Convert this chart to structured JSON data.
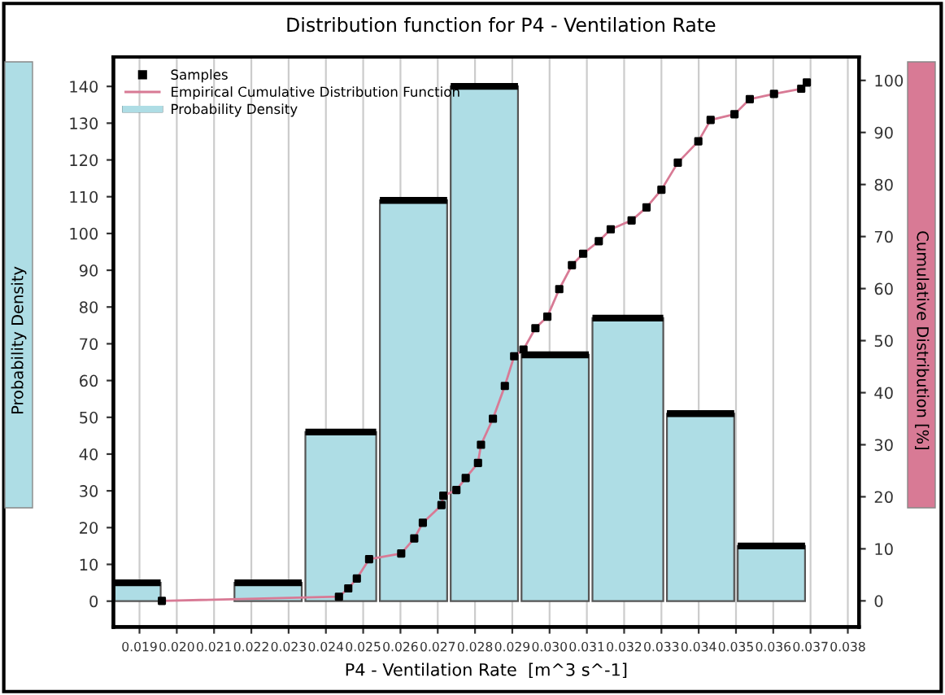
{
  "chart_data": {
    "type": "histogram",
    "title": "Distribution function for P4 - Ventilation Rate",
    "xlabel": "P4 - Ventilation Rate  [m^3 s^-1]",
    "ylabel": "Probability Density",
    "y2label": "Cumulative Distribution [%]",
    "bins": [
      0.0183,
      0.0196,
      0.0215,
      0.0234,
      0.0254,
      0.0273,
      0.0292,
      0.0311,
      0.0331,
      0.035,
      0.0369
    ],
    "series": [
      {
        "name": "Samples",
        "type": "scatter",
        "axis": "y2",
        "color": "#000000",
        "marker": "square",
        "x": [
          0.0196,
          0.02435,
          0.0246,
          0.02483,
          0.02516,
          0.02602,
          0.02637,
          0.0266,
          0.0271,
          0.02715,
          0.0275,
          0.02775,
          0.02808,
          0.02816,
          0.02848,
          0.0288,
          0.02905,
          0.0293,
          0.02962,
          0.02994,
          0.03026,
          0.0306,
          0.0309,
          0.03132,
          0.03164,
          0.0322,
          0.0326,
          0.033,
          0.03344,
          0.03399,
          0.03432,
          0.03496,
          0.03537,
          0.03602,
          0.03675,
          0.0369
        ],
        "values": [
          0,
          0.8,
          2.4,
          4.3,
          8,
          9.1,
          12,
          15,
          18.4,
          20.2,
          21.3,
          23.6,
          26.5,
          30,
          35,
          41.3,
          47,
          48.3,
          52.4,
          54.6,
          59.9,
          64.5,
          66.7,
          69.1,
          71.4,
          73.1,
          75.6,
          79,
          84.2,
          88.3,
          92.4,
          93.5,
          96.4,
          97.4,
          98.4,
          99.6
        ]
      },
      {
        "name": "Empirical Cumulative Distribution Function",
        "type": "line",
        "axis": "y2",
        "color": "#d87a95",
        "x": [
          0.0196,
          0.02435,
          0.0246,
          0.02483,
          0.02516,
          0.02602,
          0.02637,
          0.0266,
          0.0271,
          0.02715,
          0.0275,
          0.02775,
          0.02808,
          0.02816,
          0.02848,
          0.0288,
          0.02905,
          0.0293,
          0.02962,
          0.02994,
          0.03026,
          0.0306,
          0.0309,
          0.03132,
          0.03164,
          0.0322,
          0.0326,
          0.033,
          0.03344,
          0.03399,
          0.03432,
          0.03496,
          0.03537,
          0.03602,
          0.03675,
          0.0369
        ],
        "values": [
          0,
          0.8,
          2.4,
          4.3,
          8,
          9.1,
          12,
          15,
          18.4,
          20.2,
          21.3,
          23.6,
          26.5,
          30,
          35,
          41.3,
          47,
          48.3,
          52.4,
          54.6,
          59.9,
          64.5,
          66.7,
          69.1,
          71.4,
          73.1,
          75.6,
          79,
          84.2,
          88.3,
          92.4,
          93.5,
          96.4,
          97.4,
          98.4,
          99.6
        ]
      },
      {
        "name": "Probability Density",
        "type": "histogram",
        "color": "#aedde5",
        "values": [
          5,
          0,
          5,
          46,
          109,
          140,
          67,
          77,
          51,
          15
        ]
      }
    ],
    "xlim": [
      0.0183,
      0.0383
    ],
    "xticks": [
      0.019,
      {
        "value": 0.02,
        "label": "0.020"
      },
      0.021,
      0.022,
      0.023,
      0.024,
      0.025,
      0.026,
      0.027,
      0.028,
      0.029,
      {
        "value": 0.03,
        "label": "0.030"
      },
      0.031,
      0.032,
      0.033,
      0.034,
      0.035,
      0.036,
      0.037,
      0.038
    ],
    "ylim": [
      -7,
      148
    ],
    "yticks": [
      0,
      10,
      20,
      30,
      40,
      50,
      60,
      70,
      80,
      90,
      100,
      110,
      120,
      130,
      140
    ],
    "y2lim": [
      -5,
      104.5
    ],
    "y2ticks": [
      0,
      10,
      20,
      30,
      40,
      50,
      60,
      70,
      80,
      90,
      100
    ],
    "grid": "x",
    "legend": "top left"
  }
}
